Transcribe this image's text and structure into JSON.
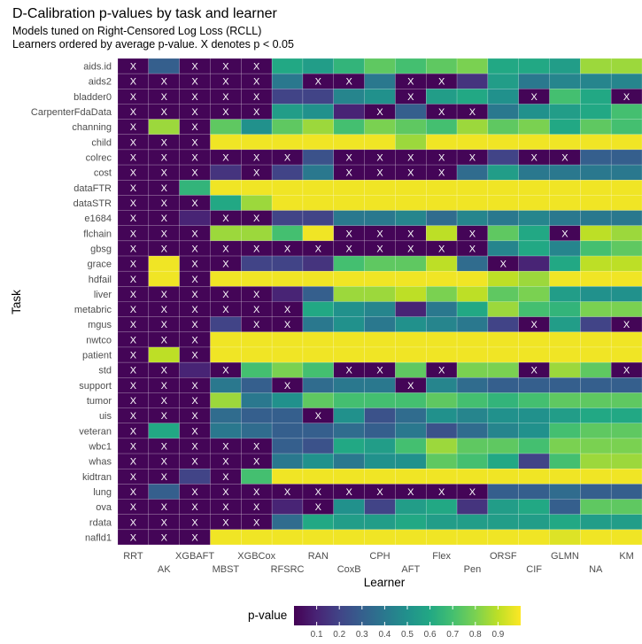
{
  "chart_data": {
    "type": "heatmap",
    "title": "D-Calibration p-values by task and learner",
    "subtitle_lines": [
      "Models tuned on Right-Censored Log Loss (RCLL)",
      "Learners ordered by average p-value. X denotes p < 0.05"
    ],
    "xlabel": "Learner",
    "ylabel": "Task",
    "learners": [
      "RRT",
      "AK",
      "XGBAFT",
      "MBST",
      "XGBCox",
      "RFSRC",
      "RAN",
      "CoxB",
      "CPH",
      "AFT",
      "Flex",
      "Pen",
      "ORSF",
      "CIF",
      "GLMN",
      "NA",
      "KM"
    ],
    "tasks": [
      "aids.id",
      "aids2",
      "bladder0",
      "CarpenterFdaData",
      "channing",
      "child",
      "colrec",
      "cost",
      "dataFTR",
      "dataSTR",
      "e1684",
      "flchain",
      "gbsg",
      "grace",
      "hdfail",
      "liver",
      "metabric",
      "mgus",
      "nwtco",
      "patient",
      "std",
      "support",
      "tumor",
      "uis",
      "veteran",
      "wbc1",
      "whas",
      "kidtran",
      "lung",
      "ova",
      "rdata",
      "nafld1"
    ],
    "mark_symbol": "X",
    "mark_rule": "p < 0.05",
    "values": [
      [
        0.01,
        0.3,
        0.01,
        0.01,
        0.01,
        0.6,
        0.55,
        0.65,
        0.75,
        0.7,
        0.75,
        0.8,
        0.6,
        0.6,
        0.55,
        0.85,
        0.85
      ],
      [
        0.01,
        0.01,
        0.01,
        0.01,
        0.01,
        0.4,
        0.01,
        0.01,
        0.4,
        0.01,
        0.01,
        0.15,
        0.55,
        0.4,
        0.45,
        0.45,
        0.45
      ],
      [
        0.01,
        0.01,
        0.01,
        0.01,
        0.01,
        0.2,
        0.2,
        0.45,
        0.5,
        0.01,
        0.55,
        0.6,
        0.5,
        0.01,
        0.7,
        0.6,
        0.01
      ],
      [
        0.01,
        0.01,
        0.01,
        0.01,
        0.01,
        0.55,
        0.5,
        0.1,
        0.01,
        0.3,
        0.01,
        0.01,
        0.4,
        0.5,
        0.55,
        0.6,
        0.7
      ],
      [
        0.01,
        0.85,
        0.01,
        0.75,
        0.5,
        0.75,
        0.85,
        0.7,
        0.8,
        0.75,
        0.7,
        0.85,
        0.75,
        0.8,
        0.6,
        0.75,
        0.7
      ],
      [
        0.01,
        0.01,
        0.01,
        0.98,
        0.98,
        0.98,
        0.98,
        0.98,
        0.98,
        0.85,
        0.98,
        0.98,
        0.98,
        0.98,
        0.98,
        0.98,
        0.98
      ],
      [
        0.01,
        0.01,
        0.01,
        0.01,
        0.01,
        0.01,
        0.25,
        0.01,
        0.01,
        0.01,
        0.01,
        0.01,
        0.2,
        0.01,
        0.01,
        0.3,
        0.3
      ],
      [
        0.01,
        0.01,
        0.01,
        0.15,
        0.01,
        0.2,
        0.4,
        0.01,
        0.01,
        0.01,
        0.01,
        0.35,
        0.55,
        0.4,
        0.4,
        0.4,
        0.4
      ],
      [
        0.01,
        0.01,
        0.65,
        0.98,
        0.98,
        0.98,
        0.98,
        0.98,
        0.98,
        0.98,
        0.98,
        0.98,
        0.98,
        0.98,
        0.98,
        0.98,
        0.98
      ],
      [
        0.01,
        0.01,
        0.01,
        0.6,
        0.85,
        0.98,
        0.98,
        0.98,
        0.98,
        0.98,
        0.98,
        0.98,
        0.98,
        0.98,
        0.98,
        0.98,
        0.98
      ],
      [
        0.01,
        0.01,
        0.1,
        0.01,
        0.01,
        0.2,
        0.2,
        0.4,
        0.4,
        0.45,
        0.35,
        0.45,
        0.4,
        0.45,
        0.4,
        0.4,
        0.4
      ],
      [
        0.01,
        0.01,
        0.01,
        0.85,
        0.85,
        0.7,
        0.98,
        0.01,
        0.01,
        0.01,
        0.9,
        0.01,
        0.75,
        0.6,
        0.01,
        0.9,
        0.85
      ],
      [
        0.01,
        0.01,
        0.01,
        0.01,
        0.01,
        0.01,
        0.01,
        0.01,
        0.01,
        0.01,
        0.01,
        0.01,
        0.45,
        0.6,
        0.45,
        0.7,
        0.75
      ],
      [
        0.01,
        0.98,
        0.01,
        0.01,
        0.2,
        0.2,
        0.15,
        0.7,
        0.75,
        0.75,
        0.9,
        0.35,
        0.01,
        0.1,
        0.6,
        0.9,
        0.9
      ],
      [
        0.01,
        0.98,
        0.01,
        0.98,
        0.98,
        0.98,
        0.98,
        0.98,
        0.98,
        0.98,
        0.98,
        0.98,
        0.9,
        0.85,
        0.98,
        0.98,
        0.98
      ],
      [
        0.01,
        0.01,
        0.01,
        0.01,
        0.01,
        0.1,
        0.3,
        0.85,
        0.85,
        0.9,
        0.8,
        0.9,
        0.75,
        0.8,
        0.55,
        0.5,
        0.5
      ],
      [
        0.01,
        0.01,
        0.01,
        0.01,
        0.01,
        0.01,
        0.6,
        0.5,
        0.45,
        0.1,
        0.4,
        0.6,
        0.85,
        0.7,
        0.65,
        0.8,
        0.8
      ],
      [
        0.01,
        0.01,
        0.01,
        0.2,
        0.01,
        0.01,
        0.4,
        0.5,
        0.4,
        0.5,
        0.45,
        0.4,
        0.2,
        0.01,
        0.55,
        0.2,
        0.01
      ],
      [
        0.01,
        0.01,
        0.01,
        0.98,
        0.98,
        0.98,
        0.98,
        0.98,
        0.98,
        0.98,
        0.98,
        0.98,
        0.98,
        0.98,
        0.98,
        0.98,
        0.98
      ],
      [
        0.01,
        0.9,
        0.01,
        0.98,
        0.98,
        0.98,
        0.98,
        0.98,
        0.98,
        0.98,
        0.98,
        0.98,
        0.98,
        0.98,
        0.98,
        0.98,
        0.98
      ],
      [
        0.01,
        0.01,
        0.1,
        0.01,
        0.7,
        0.8,
        0.7,
        0.01,
        0.01,
        0.75,
        0.01,
        0.8,
        0.8,
        0.01,
        0.85,
        0.75,
        0.01
      ],
      [
        0.01,
        0.01,
        0.01,
        0.4,
        0.3,
        0.01,
        0.35,
        0.4,
        0.4,
        0.01,
        0.45,
        0.35,
        0.3,
        0.3,
        0.3,
        0.3,
        0.3
      ],
      [
        0.01,
        0.01,
        0.01,
        0.85,
        0.4,
        0.5,
        0.75,
        0.7,
        0.7,
        0.7,
        0.75,
        0.7,
        0.65,
        0.7,
        0.75,
        0.75,
        0.75
      ],
      [
        0.01,
        0.01,
        0.01,
        0.35,
        0.3,
        0.3,
        0.01,
        0.5,
        0.25,
        0.35,
        0.5,
        0.45,
        0.5,
        0.5,
        0.55,
        0.6,
        0.6
      ],
      [
        0.01,
        0.6,
        0.01,
        0.4,
        0.35,
        0.3,
        0.3,
        0.35,
        0.3,
        0.4,
        0.25,
        0.35,
        0.45,
        0.5,
        0.7,
        0.75,
        0.75
      ],
      [
        0.01,
        0.01,
        0.01,
        0.01,
        0.01,
        0.3,
        0.25,
        0.6,
        0.55,
        0.7,
        0.85,
        0.75,
        0.75,
        0.7,
        0.8,
        0.8,
        0.8
      ],
      [
        0.01,
        0.01,
        0.01,
        0.01,
        0.01,
        0.4,
        0.5,
        0.4,
        0.5,
        0.5,
        0.75,
        0.7,
        0.6,
        0.2,
        0.7,
        0.85,
        0.85
      ],
      [
        0.01,
        0.01,
        0.2,
        0.01,
        0.7,
        0.98,
        0.98,
        0.98,
        0.98,
        0.98,
        0.98,
        0.98,
        0.98,
        0.98,
        0.98,
        0.98,
        0.98
      ],
      [
        0.01,
        0.3,
        0.01,
        0.01,
        0.01,
        0.01,
        0.01,
        0.01,
        0.01,
        0.01,
        0.01,
        0.01,
        0.3,
        0.3,
        0.35,
        0.3,
        0.3
      ],
      [
        0.01,
        0.01,
        0.01,
        0.01,
        0.01,
        0.1,
        0.01,
        0.5,
        0.2,
        0.55,
        0.6,
        0.15,
        0.55,
        0.6,
        0.3,
        0.75,
        0.75
      ],
      [
        0.01,
        0.01,
        0.01,
        0.01,
        0.01,
        0.35,
        0.6,
        0.55,
        0.55,
        0.6,
        0.55,
        0.55,
        0.55,
        0.55,
        0.6,
        0.55,
        0.55
      ],
      [
        0.01,
        0.01,
        0.01,
        0.98,
        0.98,
        0.98,
        0.98,
        0.98,
        0.98,
        0.98,
        0.98,
        0.98,
        0.98,
        0.98,
        0.95,
        0.98,
        0.98
      ]
    ],
    "legend": {
      "title": "p-value",
      "ticks": [
        0.1,
        0.2,
        0.3,
        0.4,
        0.5,
        0.6,
        0.7,
        0.8,
        0.9
      ],
      "tick_labels": [
        "0.1",
        "0.2",
        "0.3",
        "0.4",
        "0.5",
        "0.6",
        "0.7",
        "0.8",
        "0.9"
      ],
      "placement": "bottom",
      "range": [
        0,
        1
      ]
    },
    "colormap": "viridis",
    "colors": {
      "grid_line": "#ffffff",
      "mark": "#ffffff"
    }
  }
}
